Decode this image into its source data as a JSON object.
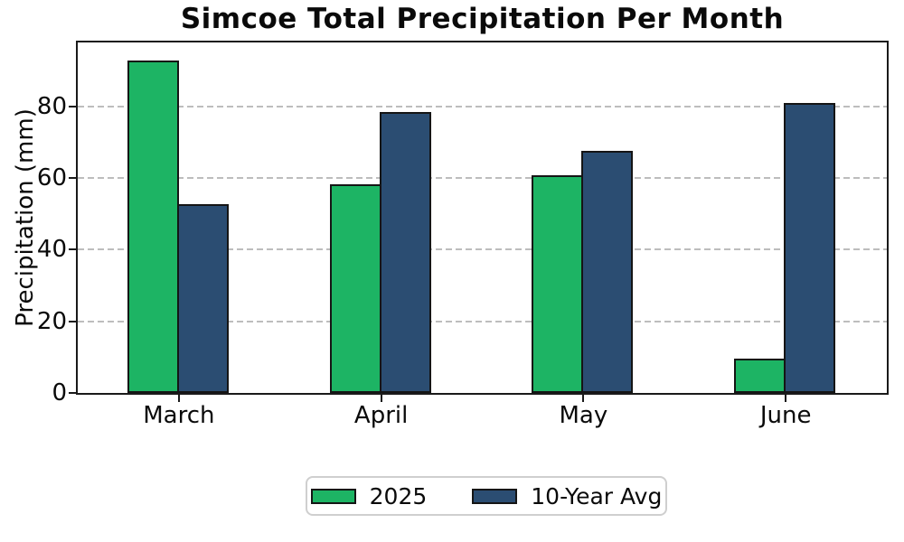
{
  "chart_data": {
    "type": "bar",
    "title": "Simcoe Total Precipitation Per Month",
    "xlabel": "",
    "ylabel": "Precipitation (mm)",
    "categories": [
      "March",
      "April",
      "May",
      "June"
    ],
    "series": [
      {
        "name": "2025",
        "color": "#1db464",
        "values": [
          92.8,
          58.3,
          60.7,
          9.6
        ]
      },
      {
        "name": "10-Year Avg",
        "color": "#2b4d72",
        "values": [
          52.7,
          78.4,
          67.6,
          80.9
        ]
      }
    ],
    "ylim": [
      0,
      97.8
    ],
    "yticks": [
      0,
      20,
      40,
      60,
      80
    ],
    "grid": "horizontal-dashed",
    "gridline_color": "#bdbdbd",
    "bar_edge_color": "#151515",
    "legend_position": "bottom-center",
    "legend_border_color": "#cfcfcf"
  }
}
